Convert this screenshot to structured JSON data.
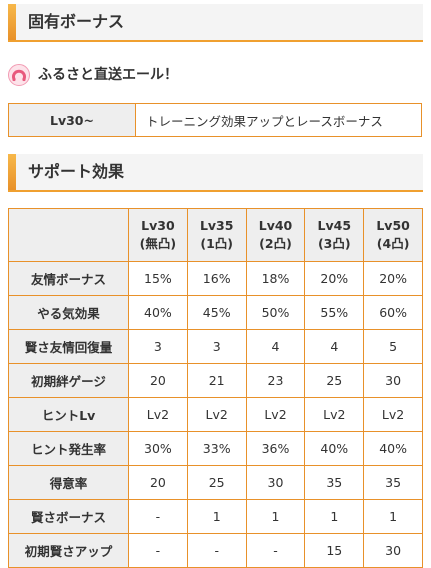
{
  "sections": {
    "unique_bonus_title": "固有ボーナス",
    "support_effect_title": "サポート効果"
  },
  "skill": {
    "name": "ふるさと直送エール！"
  },
  "unique_table": {
    "level": "Lv30~",
    "description": "トレーニング効果アップとレースボーナス"
  },
  "effect_table": {
    "headers": [
      {
        "lv": "Lv30",
        "sub": "(無凸)"
      },
      {
        "lv": "Lv35",
        "sub": "(1凸)"
      },
      {
        "lv": "Lv40",
        "sub": "(2凸)"
      },
      {
        "lv": "Lv45",
        "sub": "(3凸)"
      },
      {
        "lv": "Lv50",
        "sub": "(4凸)"
      }
    ],
    "rows": [
      {
        "label": "友情ボーナス",
        "values": [
          "15%",
          "16%",
          "18%",
          "20%",
          "20%"
        ]
      },
      {
        "label": "やる気効果",
        "values": [
          "40%",
          "45%",
          "50%",
          "55%",
          "60%"
        ]
      },
      {
        "label": "賢さ友情回復量",
        "values": [
          "3",
          "3",
          "4",
          "4",
          "5"
        ]
      },
      {
        "label": "初期絆ゲージ",
        "values": [
          "20",
          "21",
          "23",
          "25",
          "30"
        ]
      },
      {
        "label": "ヒントLv",
        "values": [
          "Lv2",
          "Lv2",
          "Lv2",
          "Lv2",
          "Lv2"
        ]
      },
      {
        "label": "ヒント発生率",
        "values": [
          "30%",
          "33%",
          "36%",
          "40%",
          "40%"
        ]
      },
      {
        "label": "得意率",
        "values": [
          "20",
          "25",
          "30",
          "35",
          "35"
        ]
      },
      {
        "label": "賢さボーナス",
        "values": [
          "-",
          "1",
          "1",
          "1",
          "1"
        ]
      },
      {
        "label": "初期賢さアップ",
        "values": [
          "-",
          "-",
          "-",
          "15",
          "30"
        ]
      }
    ]
  },
  "icons": {
    "skill_icon": "horseshoe-icon"
  },
  "colors": {
    "accent": "#e8912a",
    "header_bg": "#eeeeee"
  }
}
